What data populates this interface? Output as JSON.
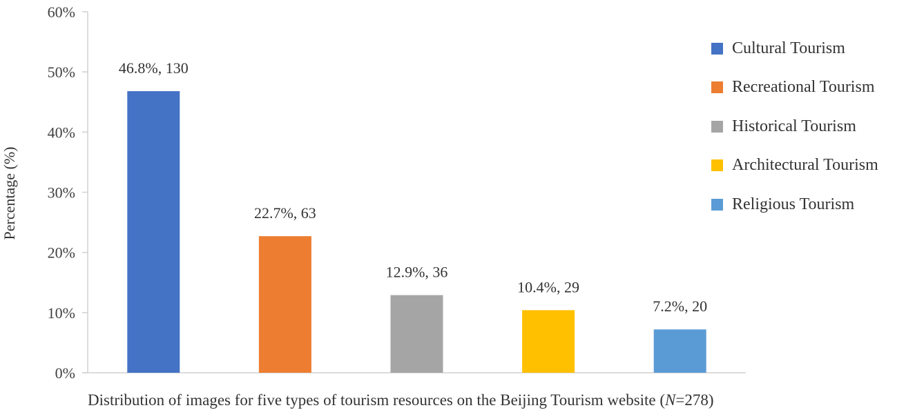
{
  "chart_data": {
    "type": "bar",
    "title": "",
    "xlabel": "Distribution of images for five types of tourism resources on the Beijing Tourism  website (N=278)",
    "ylabel": "Percentage (%)",
    "ylim": [
      0,
      60
    ],
    "yticks": [
      "0%",
      "10%",
      "20%",
      "30%",
      "40%",
      "50%",
      "60%"
    ],
    "grid": false,
    "legend_position": "right",
    "categories": [
      "Cultural Tourism",
      "Recreational Tourism",
      "Historical Tourism",
      "Architectural Tourism",
      "Religious Tourism"
    ],
    "values": [
      46.8,
      22.7,
      12.9,
      10.4,
      7.2
    ],
    "counts": [
      130,
      63,
      36,
      29,
      20
    ],
    "data_labels": [
      "46.8%, 130",
      "22.7%, 63",
      "12.9%, 36",
      "10.4%, 29",
      "7.2%, 20"
    ],
    "colors": [
      "#4472C4",
      "#ED7D31",
      "#A5A5A5",
      "#FFC000",
      "#5B9BD5"
    ],
    "total_n": 278
  },
  "axis": {
    "y_title": "Percentage (%)",
    "caption_main": "Distribution of images for five types of tourism resources on the Beijing Tourism  website (",
    "caption_n_symbol": "N",
    "caption_n_value": "=278)"
  },
  "legend": {
    "items": [
      {
        "label": "Cultural Tourism",
        "color": "#4472C4"
      },
      {
        "label": "Recreational Tourism",
        "color": "#ED7D31"
      },
      {
        "label": "Historical Tourism",
        "color": "#A5A5A5"
      },
      {
        "label": "Architectural Tourism",
        "color": "#FFC000"
      },
      {
        "label": "Religious Tourism",
        "color": "#5B9BD5"
      }
    ]
  }
}
